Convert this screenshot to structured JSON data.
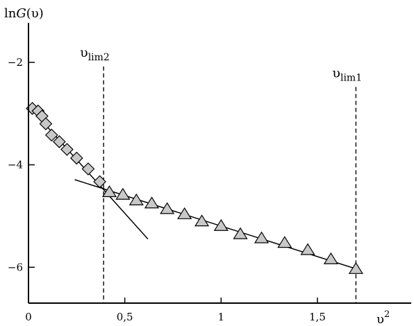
{
  "chart_data": {
    "type": "scatter",
    "ylabel_prefix": "ln",
    "ylabel_var": "G",
    "ylabel_suffix": "(υ)",
    "xlabel_base": "υ",
    "xlabel_sup": "2",
    "xlim": [
      0,
      2.0
    ],
    "ylim": [
      -6.7,
      -1.1
    ],
    "x_ticks": [
      {
        "value": 0,
        "label": "0"
      },
      {
        "value": 0.5,
        "label": "0,5"
      },
      {
        "value": 1,
        "label": "1"
      },
      {
        "value": 1.5,
        "label": "1,5"
      }
    ],
    "y_ticks": [
      {
        "value": -2,
        "label": "−2"
      },
      {
        "value": -4,
        "label": "−4"
      },
      {
        "value": -6,
        "label": "−6"
      }
    ],
    "series": [
      {
        "marker": "diamond",
        "color": "#c8c8c8",
        "points": [
          {
            "x": 0.02,
            "y": -2.9
          },
          {
            "x": 0.05,
            "y": -2.95
          },
          {
            "x": 0.07,
            "y": -3.05
          },
          {
            "x": 0.09,
            "y": -3.2
          },
          {
            "x": 0.12,
            "y": -3.42
          },
          {
            "x": 0.16,
            "y": -3.55
          },
          {
            "x": 0.2,
            "y": -3.7
          },
          {
            "x": 0.25,
            "y": -3.87
          },
          {
            "x": 0.31,
            "y": -4.08
          },
          {
            "x": 0.37,
            "y": -4.33
          }
        ]
      },
      {
        "marker": "triangle",
        "color": "#c8c8c8",
        "points": [
          {
            "x": 0.42,
            "y": -4.53
          },
          {
            "x": 0.49,
            "y": -4.58
          },
          {
            "x": 0.56,
            "y": -4.69
          },
          {
            "x": 0.64,
            "y": -4.75
          },
          {
            "x": 0.72,
            "y": -4.86
          },
          {
            "x": 0.81,
            "y": -4.96
          },
          {
            "x": 0.9,
            "y": -5.1
          },
          {
            "x": 1.0,
            "y": -5.19
          },
          {
            "x": 1.1,
            "y": -5.35
          },
          {
            "x": 1.21,
            "y": -5.43
          },
          {
            "x": 1.33,
            "y": -5.52
          },
          {
            "x": 1.45,
            "y": -5.66
          },
          {
            "x": 1.57,
            "y": -5.84
          },
          {
            "x": 1.7,
            "y": -6.03
          }
        ]
      }
    ],
    "fit_lines": [
      {
        "x1": 0.0,
        "y1": -2.85,
        "x2": 0.62,
        "y2": -5.45
      },
      {
        "x1": 0.24,
        "y1": -4.29,
        "x2": 1.7,
        "y2": -6.03
      }
    ],
    "vlines": [
      {
        "x": 0.39,
        "label_base": "υ",
        "label_sub": "lim2",
        "top_y": -2.08
      },
      {
        "x": 1.7,
        "label_base": "υ",
        "label_sub": "lim1",
        "top_y": -2.48
      }
    ]
  }
}
